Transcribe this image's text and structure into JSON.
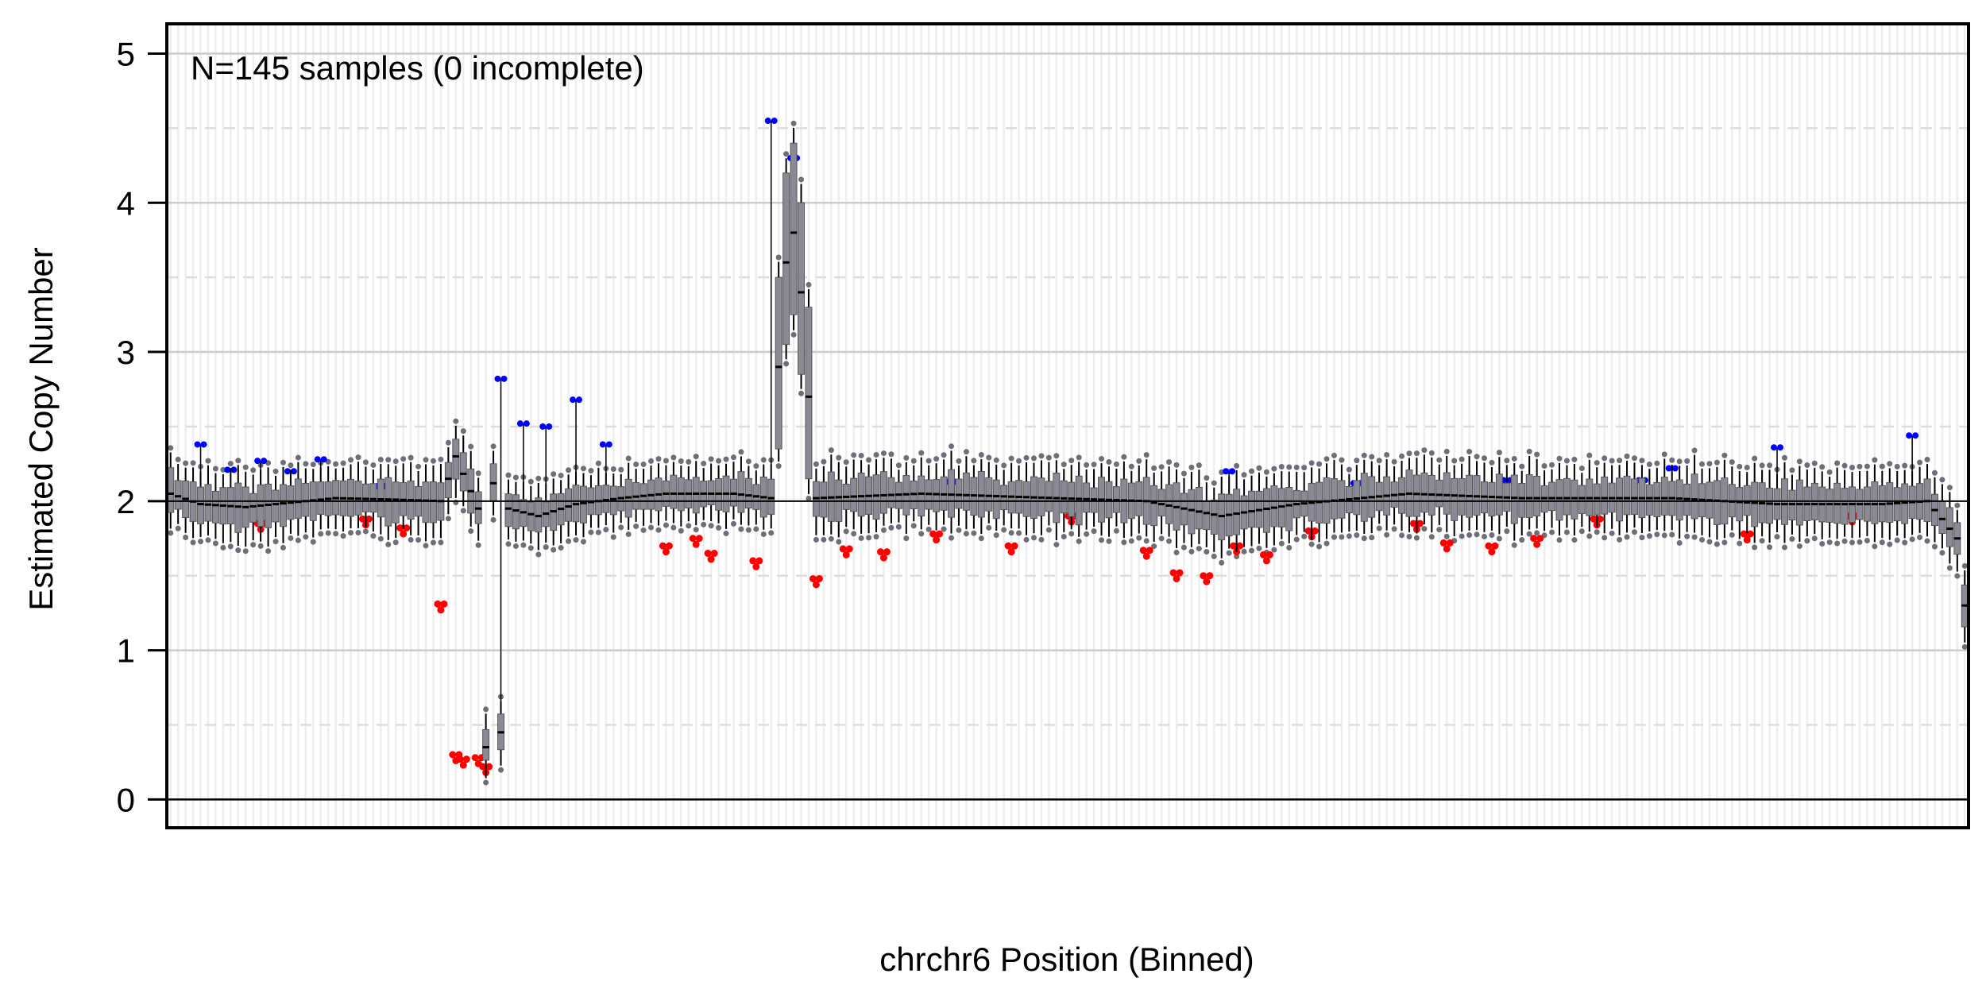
{
  "chart_data": {
    "type": "boxplot",
    "annotation": "N=145 samples (0 incomplete)",
    "xlabel": "chrchr6 Position (Binned)",
    "ylabel": "Estimated Copy Number",
    "ylim": [
      -0.19,
      5.2
    ],
    "yticks": [
      "0",
      "1",
      "2",
      "3",
      "4",
      "5"
    ],
    "reference_line": 2,
    "grid": true,
    "colors": {
      "box": "#8a8a96",
      "whisker": "#000000",
      "outlier": "#6e6e78",
      "high_outlier": "#0000ff",
      "low_outlier": "#ff0000",
      "grid_major": "#cccccc",
      "grid_minor": "#dddddd",
      "bin_line": "#eeeeee"
    },
    "bin_count": 240,
    "profile": [
      [
        0,
        2.05
      ],
      [
        4,
        1.98
      ],
      [
        10,
        1.96
      ],
      [
        22,
        2.02
      ],
      [
        30,
        2.01
      ],
      [
        36,
        2.0
      ],
      [
        38,
        2.3
      ],
      [
        41,
        1.95
      ],
      [
        42,
        0.35
      ],
      [
        43,
        2.12
      ],
      [
        44,
        0.45
      ],
      [
        45,
        1.95
      ],
      [
        49,
        1.9
      ],
      [
        54,
        1.98
      ],
      [
        60,
        2.02
      ],
      [
        66,
        2.05
      ],
      [
        75,
        2.05
      ],
      [
        80,
        2.02
      ],
      [
        81,
        2.9
      ],
      [
        82,
        3.6
      ],
      [
        83,
        3.8
      ],
      [
        84,
        3.4
      ],
      [
        85,
        2.7
      ],
      [
        86,
        2.02
      ],
      [
        100,
        2.05
      ],
      [
        130,
        2.0
      ],
      [
        140,
        1.9
      ],
      [
        150,
        1.98
      ],
      [
        165,
        2.05
      ],
      [
        180,
        2.02
      ],
      [
        200,
        2.02
      ],
      [
        214,
        1.98
      ],
      [
        228,
        1.98
      ],
      [
        234,
        2.0
      ],
      [
        236,
        1.88
      ],
      [
        238,
        1.75
      ],
      [
        239,
        1.3
      ]
    ],
    "high_outlier_bins": [
      [
        4,
        2.38
      ],
      [
        8,
        2.21
      ],
      [
        12,
        2.27
      ],
      [
        16,
        2.2
      ],
      [
        20,
        2.28
      ],
      [
        28,
        2.1
      ],
      [
        44,
        2.82
      ],
      [
        47,
        2.52
      ],
      [
        50,
        2.5
      ],
      [
        54,
        2.68
      ],
      [
        58,
        2.38
      ],
      [
        80,
        4.55
      ],
      [
        83,
        4.3
      ],
      [
        104,
        2.13
      ],
      [
        141,
        2.2
      ],
      [
        158,
        2.12
      ],
      [
        178,
        2.14
      ],
      [
        196,
        2.14
      ],
      [
        200,
        2.22
      ],
      [
        214,
        2.36
      ],
      [
        232,
        2.44
      ]
    ],
    "low_outlier_bins": [
      [
        12,
        1.85
      ],
      [
        26,
        1.88
      ],
      [
        31,
        1.82
      ],
      [
        36,
        1.31
      ],
      [
        38,
        0.3
      ],
      [
        39,
        0.27
      ],
      [
        41,
        0.28
      ],
      [
        42,
        0.22
      ],
      [
        66,
        1.7
      ],
      [
        70,
        1.75
      ],
      [
        72,
        1.65
      ],
      [
        78,
        1.6
      ],
      [
        86,
        1.48
      ],
      [
        90,
        1.68
      ],
      [
        95,
        1.66
      ],
      [
        102,
        1.78
      ],
      [
        112,
        1.7
      ],
      [
        120,
        1.9
      ],
      [
        130,
        1.67
      ],
      [
        134,
        1.52
      ],
      [
        138,
        1.5
      ],
      [
        142,
        1.7
      ],
      [
        146,
        1.64
      ],
      [
        152,
        1.8
      ],
      [
        166,
        1.85
      ],
      [
        170,
        1.72
      ],
      [
        176,
        1.7
      ],
      [
        182,
        1.75
      ],
      [
        190,
        1.88
      ],
      [
        210,
        1.78
      ],
      [
        224,
        1.9
      ]
    ]
  }
}
